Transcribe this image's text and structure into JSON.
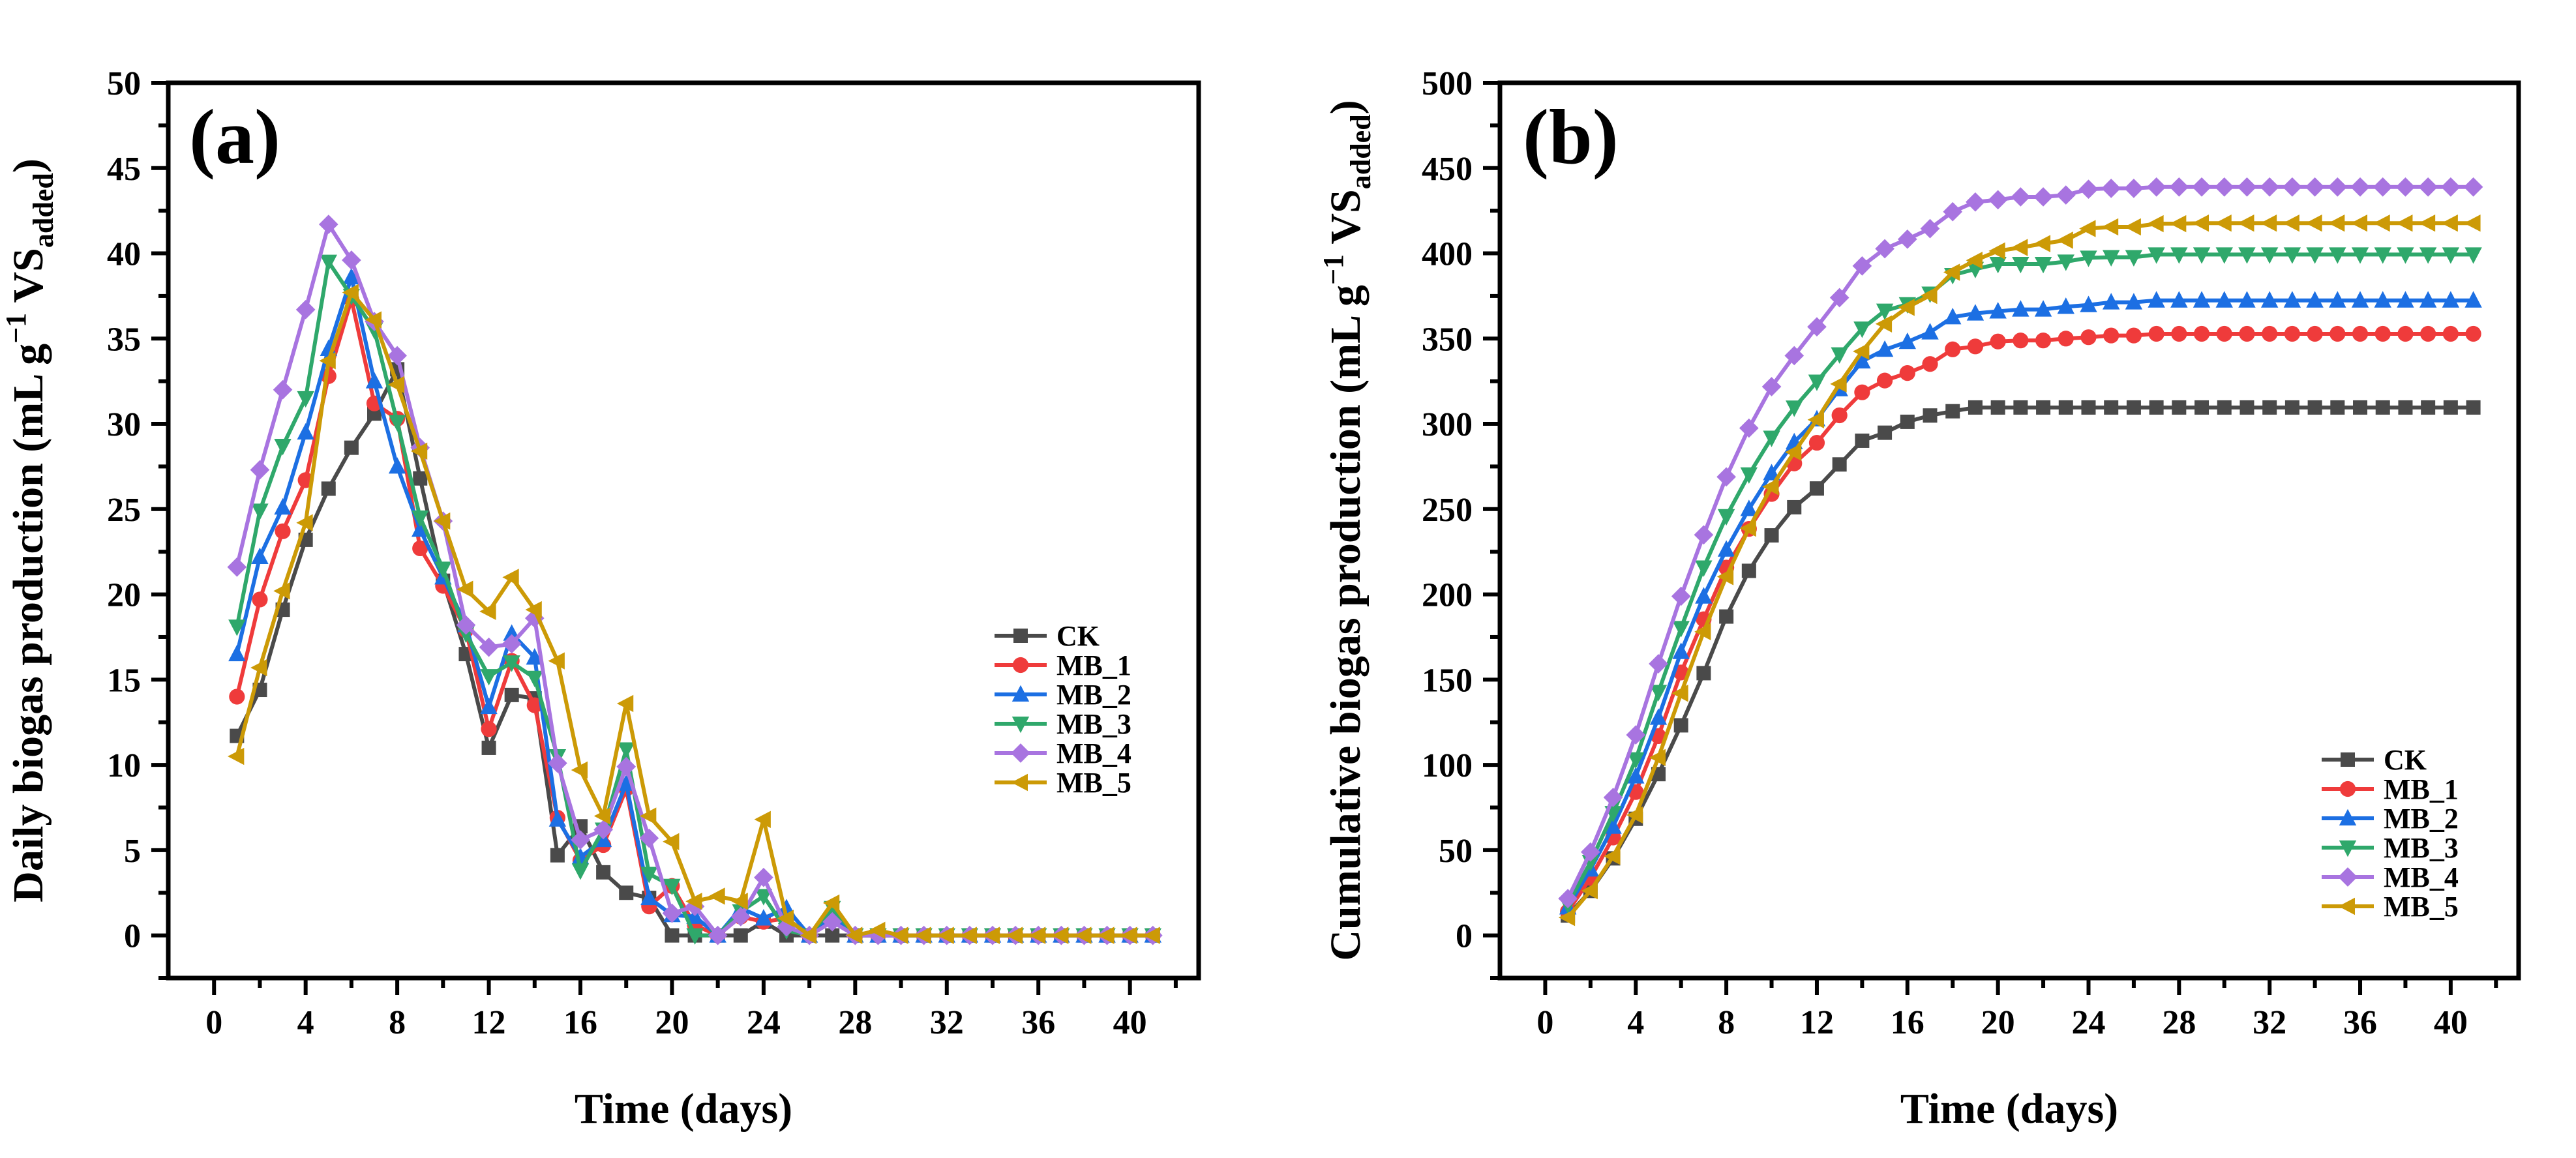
{
  "colors": {
    "CK": "#4a4a4a",
    "MB_1": "#ef3b3b",
    "MB_2": "#1c6fe3",
    "MB_3": "#2fa86b",
    "MB_4": "#a874e0",
    "MB_5": "#cc9a06"
  },
  "markers": {
    "CK": "square",
    "MB_1": "circle",
    "MB_2": "triangle-up",
    "MB_3": "triangle-down",
    "MB_4": "diamond",
    "MB_5": "triangle-left"
  },
  "chart_data": [
    {
      "type": "line",
      "panel_label": "(a)",
      "xlabel": "Time (days)",
      "ylabel_main": "Daily biogas production (mL g",
      "ylabel_sup": "−1",
      "ylabel_mid": " VS",
      "ylabel_sub": "added",
      "ylabel_end": ")",
      "xlim": [
        -2,
        43
      ],
      "ylim": [
        -2.5,
        50
      ],
      "xticks": [
        0,
        4,
        8,
        12,
        16,
        20,
        24,
        28,
        32,
        36,
        40
      ],
      "yticks": [
        0,
        5,
        10,
        15,
        20,
        25,
        30,
        35,
        40,
        45,
        50
      ],
      "grid": false,
      "legend_position": "right-middle",
      "x": [
        1,
        2,
        3,
        4,
        5,
        6,
        7,
        8,
        9,
        10,
        11,
        12,
        13,
        14,
        15,
        16,
        17,
        18,
        19,
        20,
        21,
        22,
        23,
        24,
        25,
        26,
        27,
        28,
        29,
        30,
        31,
        32,
        33,
        34,
        35,
        36,
        37,
        38,
        39,
        40,
        41
      ],
      "series": [
        {
          "name": "CK",
          "values": [
            11.7,
            14.4,
            19.1,
            23.2,
            26.2,
            28.6,
            30.6,
            33.2,
            26.8,
            20.8,
            16.5,
            11.0,
            14.1,
            13.9,
            4.7,
            6.4,
            3.7,
            2.5,
            2.2,
            0,
            0,
            0,
            0,
            0.8,
            0,
            0,
            0,
            0,
            0,
            0,
            0,
            0,
            0,
            0,
            0,
            0,
            0,
            0,
            0,
            0,
            0
          ]
        },
        {
          "name": "MB_1",
          "values": [
            14.0,
            19.7,
            23.7,
            26.7,
            32.8,
            37.3,
            31.2,
            30.3,
            22.7,
            20.5,
            17.9,
            12.1,
            16.1,
            13.5,
            6.9,
            4.4,
            5.3,
            8.6,
            1.7,
            2.9,
            0.6,
            0,
            1.1,
            0.8,
            1.0,
            0,
            1.0,
            0,
            0,
            0,
            0,
            0,
            0,
            0,
            0,
            0,
            0,
            0,
            0,
            0,
            0
          ]
        },
        {
          "name": "MB_2",
          "values": [
            16.5,
            22.2,
            25.1,
            29.5,
            34.4,
            38.6,
            32.5,
            27.5,
            23.8,
            21.0,
            18.2,
            13.4,
            17.7,
            16.3,
            6.8,
            4.6,
            5.6,
            8.9,
            2.2,
            1.2,
            1.1,
            0,
            1.6,
            1.0,
            1.6,
            0,
            1.1,
            0,
            0,
            0,
            0,
            0,
            0,
            0,
            0,
            0,
            0,
            0,
            0,
            0,
            0
          ]
        },
        {
          "name": "MB_3",
          "values": [
            18.1,
            24.9,
            28.7,
            31.5,
            39.5,
            37.5,
            35.5,
            30.1,
            24.5,
            21.5,
            17.7,
            15.2,
            16.0,
            15.1,
            10.5,
            3.8,
            6.2,
            10.9,
            3.6,
            2.9,
            0,
            0,
            1.4,
            2.3,
            0.3,
            0,
            1.6,
            0,
            0,
            0,
            0,
            0,
            0,
            0,
            0,
            0,
            0,
            0,
            0,
            0,
            0
          ]
        },
        {
          "name": "MB_4",
          "values": [
            21.6,
            27.3,
            32.0,
            36.7,
            41.7,
            39.6,
            36.0,
            34.0,
            28.6,
            24.3,
            18.2,
            16.9,
            17.1,
            18.6,
            10.1,
            5.6,
            6.2,
            9.9,
            5.7,
            1.3,
            1.7,
            0,
            1.1,
            3.4,
            0.5,
            0,
            0.8,
            0,
            0,
            0,
            0,
            0,
            0,
            0,
            0,
            0,
            0,
            0,
            0,
            0,
            0
          ]
        },
        {
          "name": "MB_5",
          "values": [
            10.5,
            15.7,
            20.2,
            24.2,
            33.7,
            37.7,
            36.1,
            32.3,
            28.4,
            24.3,
            20.3,
            19.0,
            21.0,
            19.1,
            16.1,
            9.7,
            7.0,
            13.6,
            7.0,
            5.5,
            2.0,
            2.3,
            2.0,
            6.8,
            1.0,
            0,
            1.9,
            0,
            0.3,
            0,
            0,
            0,
            0,
            0,
            0,
            0,
            0,
            0,
            0,
            0,
            0
          ]
        }
      ]
    },
    {
      "type": "line",
      "panel_label": "(b)",
      "xlabel": "Time (days)",
      "ylabel_main": "Cumulative biogas production (mL g",
      "ylabel_sup": "−1",
      "ylabel_mid": " VS",
      "ylabel_sub": "added",
      "ylabel_end": ")",
      "xlim": [
        -2,
        43
      ],
      "ylim": [
        -25,
        500
      ],
      "xticks": [
        0,
        4,
        8,
        12,
        16,
        20,
        24,
        28,
        32,
        36,
        40
      ],
      "yticks": [
        0,
        50,
        100,
        150,
        200,
        250,
        300,
        350,
        400,
        450,
        500
      ],
      "grid": false,
      "legend_position": "bottom-right",
      "x": [
        1,
        2,
        3,
        4,
        5,
        6,
        7,
        8,
        9,
        10,
        11,
        12,
        13,
        14,
        15,
        16,
        17,
        18,
        19,
        20,
        21,
        22,
        23,
        24,
        25,
        26,
        27,
        28,
        29,
        30,
        31,
        32,
        33,
        34,
        35,
        36,
        37,
        38,
        39,
        40,
        41
      ],
      "series": [
        {
          "name": "CK",
          "values": [
            11.7,
            26.1,
            45.2,
            68.4,
            94.6,
            123.2,
            153.8,
            187.0,
            213.8,
            234.6,
            251.1,
            262.1,
            276.2,
            290.1,
            294.8,
            301.2,
            304.9,
            307.4,
            309.6,
            309.6,
            309.6,
            309.6,
            309.6,
            309.6,
            309.6,
            309.6,
            309.6,
            309.6,
            309.6,
            309.6,
            309.6,
            309.6,
            309.6,
            309.6,
            309.6,
            309.6,
            309.6,
            309.6,
            309.6,
            309.6,
            309.6
          ]
        },
        {
          "name": "MB_1",
          "values": [
            14.0,
            33.7,
            57.4,
            84.1,
            116.9,
            154.2,
            185.4,
            215.7,
            238.4,
            258.9,
            276.8,
            288.9,
            305.0,
            318.5,
            325.4,
            329.8,
            335.1,
            343.7,
            345.4,
            348.3,
            348.9,
            348.9,
            350.0,
            350.8,
            351.8,
            351.8,
            352.8,
            352.8,
            352.8,
            352.8,
            352.8,
            352.8,
            352.8,
            352.8,
            352.8,
            352.8,
            352.8,
            352.8,
            352.8,
            352.8,
            352.8
          ]
        },
        {
          "name": "MB_2",
          "values": [
            16.5,
            38.7,
            63.8,
            93.3,
            127.7,
            166.3,
            198.8,
            226.3,
            250.1,
            271.1,
            289.3,
            302.7,
            320.4,
            336.7,
            343.5,
            348.1,
            353.7,
            362.6,
            364.8,
            366.0,
            367.1,
            367.1,
            368.7,
            369.7,
            371.3,
            371.3,
            372.4,
            372.4,
            372.4,
            372.4,
            372.4,
            372.4,
            372.4,
            372.4,
            372.4,
            372.4,
            372.4,
            372.4,
            372.4,
            372.4,
            372.4
          ]
        },
        {
          "name": "MB_3",
          "values": [
            18.1,
            43.0,
            71.7,
            103.2,
            142.7,
            180.2,
            215.7,
            245.8,
            270.3,
            291.8,
            309.5,
            324.7,
            340.7,
            355.8,
            366.3,
            370.1,
            376.3,
            387.2,
            390.8,
            393.7,
            393.7,
            393.7,
            395.1,
            397.4,
            397.7,
            397.7,
            399.3,
            399.3,
            399.3,
            399.3,
            399.3,
            399.3,
            399.3,
            399.3,
            399.3,
            399.3,
            399.3,
            399.3,
            399.3,
            399.3,
            399.3
          ]
        },
        {
          "name": "MB_4",
          "values": [
            21.6,
            48.9,
            80.9,
            117.6,
            159.3,
            198.9,
            234.9,
            268.9,
            297.5,
            321.8,
            340.0,
            356.9,
            374.0,
            392.6,
            402.7,
            408.3,
            414.5,
            424.4,
            430.1,
            431.4,
            433.1,
            433.1,
            434.2,
            437.6,
            438.1,
            438.1,
            438.9,
            438.9,
            438.9,
            438.9,
            438.9,
            438.9,
            438.9,
            438.9,
            438.9,
            438.9,
            438.9,
            438.9,
            438.9,
            438.9,
            438.9
          ]
        },
        {
          "name": "MB_5",
          "values": [
            10.5,
            26.2,
            46.4,
            70.6,
            104.3,
            142.0,
            178.1,
            210.4,
            238.8,
            263.1,
            283.4,
            302.4,
            323.4,
            342.5,
            358.6,
            368.3,
            375.3,
            388.9,
            395.9,
            401.4,
            403.4,
            405.7,
            407.7,
            414.5,
            415.5,
            415.5,
            417.4,
            417.4,
            417.7,
            417.7,
            417.7,
            417.7,
            417.7,
            417.7,
            417.7,
            417.7,
            417.7,
            417.7,
            417.7,
            417.7,
            417.7
          ]
        }
      ]
    }
  ]
}
